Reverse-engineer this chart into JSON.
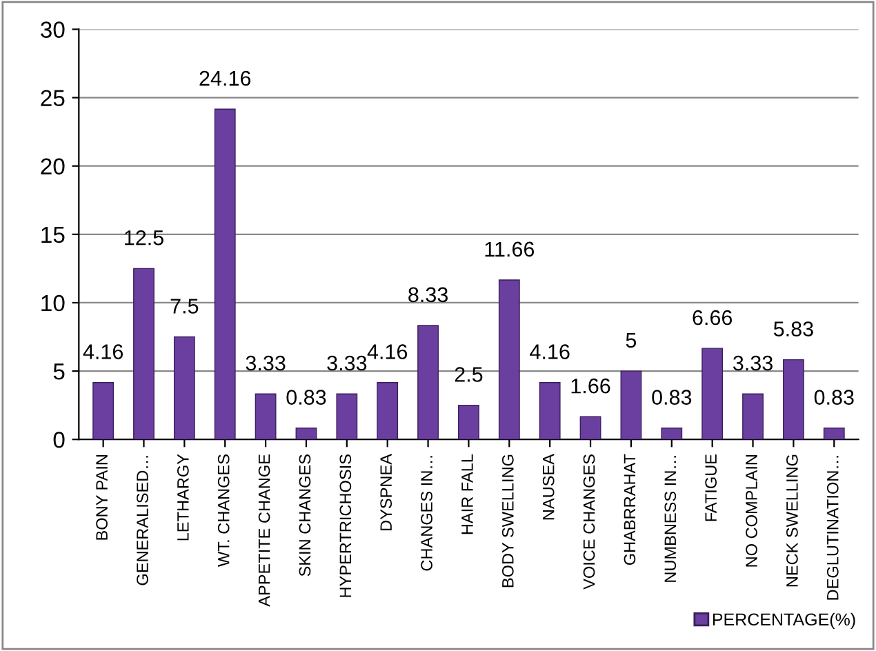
{
  "chart_data": {
    "type": "bar",
    "categories": [
      "BONY PAIN",
      "GENERALISED…",
      "LETHARGY",
      "WT. CHANGES",
      "APPETITE CHANGE",
      "SKIN CHANGES",
      "HYPERTRICHOSIS",
      "DYSPNEA",
      "CHANGES IN…",
      "HAIR FALL",
      "BODY SWELLING",
      "NAUSEA",
      "VOICE CHANGES",
      "GHABRRAHAT",
      "NUMBNESS IN…",
      "FATIGUE",
      "NO COMPLAIN",
      "NECK SWELLING",
      "DEGLUTINATION…"
    ],
    "series": [
      {
        "name": "PERCENTAGE(%)",
        "color": "#6b3fa0",
        "values": [
          4.16,
          12.5,
          7.5,
          24.16,
          3.33,
          0.83,
          3.33,
          4.16,
          8.33,
          2.5,
          11.66,
          4.16,
          1.66,
          5,
          0.83,
          6.66,
          3.33,
          5.83,
          0.83
        ]
      }
    ],
    "ylim": [
      0,
      30
    ],
    "yticks": [
      0,
      5,
      10,
      15,
      20,
      25,
      30
    ],
    "grid": "y",
    "legend": "bottom right",
    "data_labels": true
  }
}
